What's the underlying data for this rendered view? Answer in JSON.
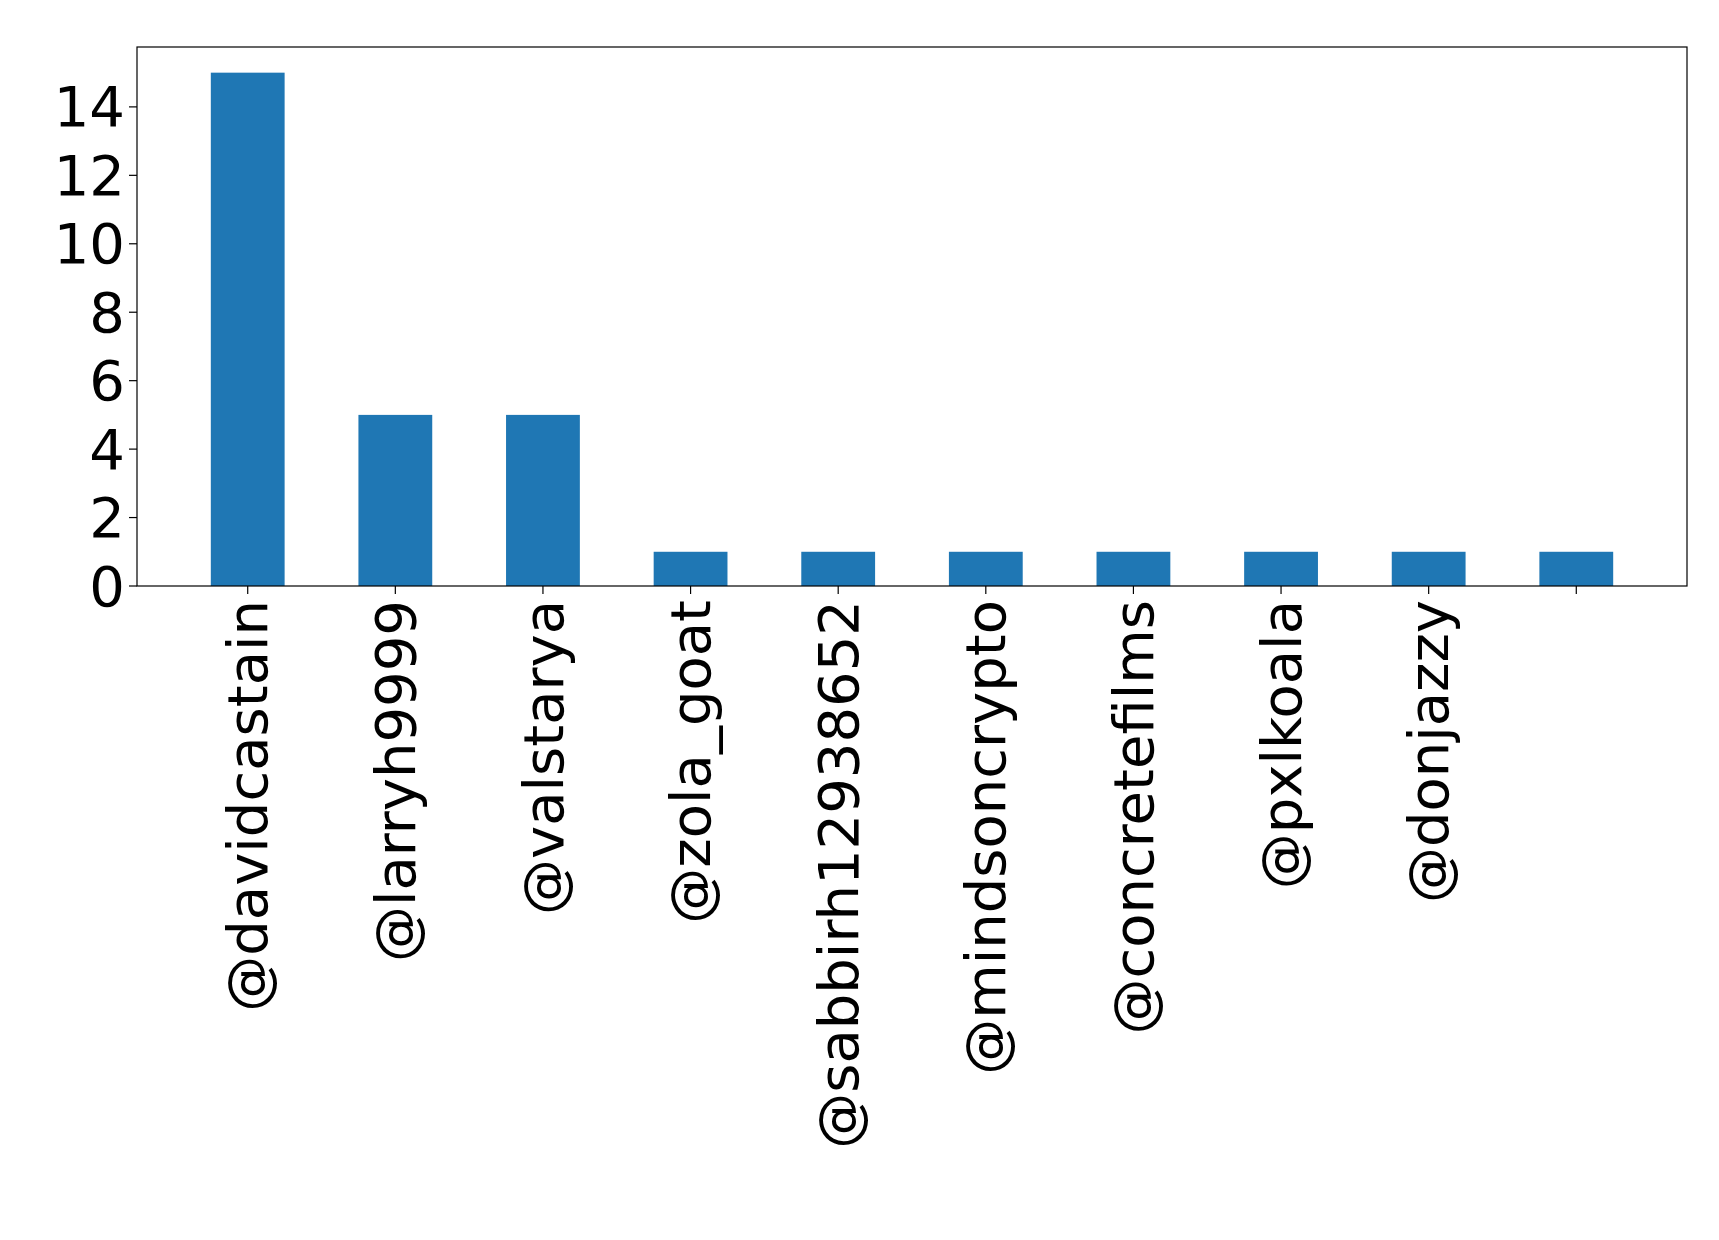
{
  "chart_data": {
    "type": "bar",
    "categories": [
      "@davidcastain",
      "@larryh9999",
      "@valstarya",
      "@zola_goat",
      "@sabbirh12938652",
      "@mindsoncrypto",
      "@concretefilms",
      "@pxlkoala",
      "@donjazzy",
      null
    ],
    "values": [
      15,
      5,
      5,
      1,
      1,
      1,
      1,
      1,
      1,
      1
    ],
    "color": "#1f77b4",
    "ylim": [
      0,
      15.75
    ],
    "yticks": [
      0,
      2,
      4,
      6,
      8,
      10,
      12,
      14
    ],
    "grid": false
  }
}
